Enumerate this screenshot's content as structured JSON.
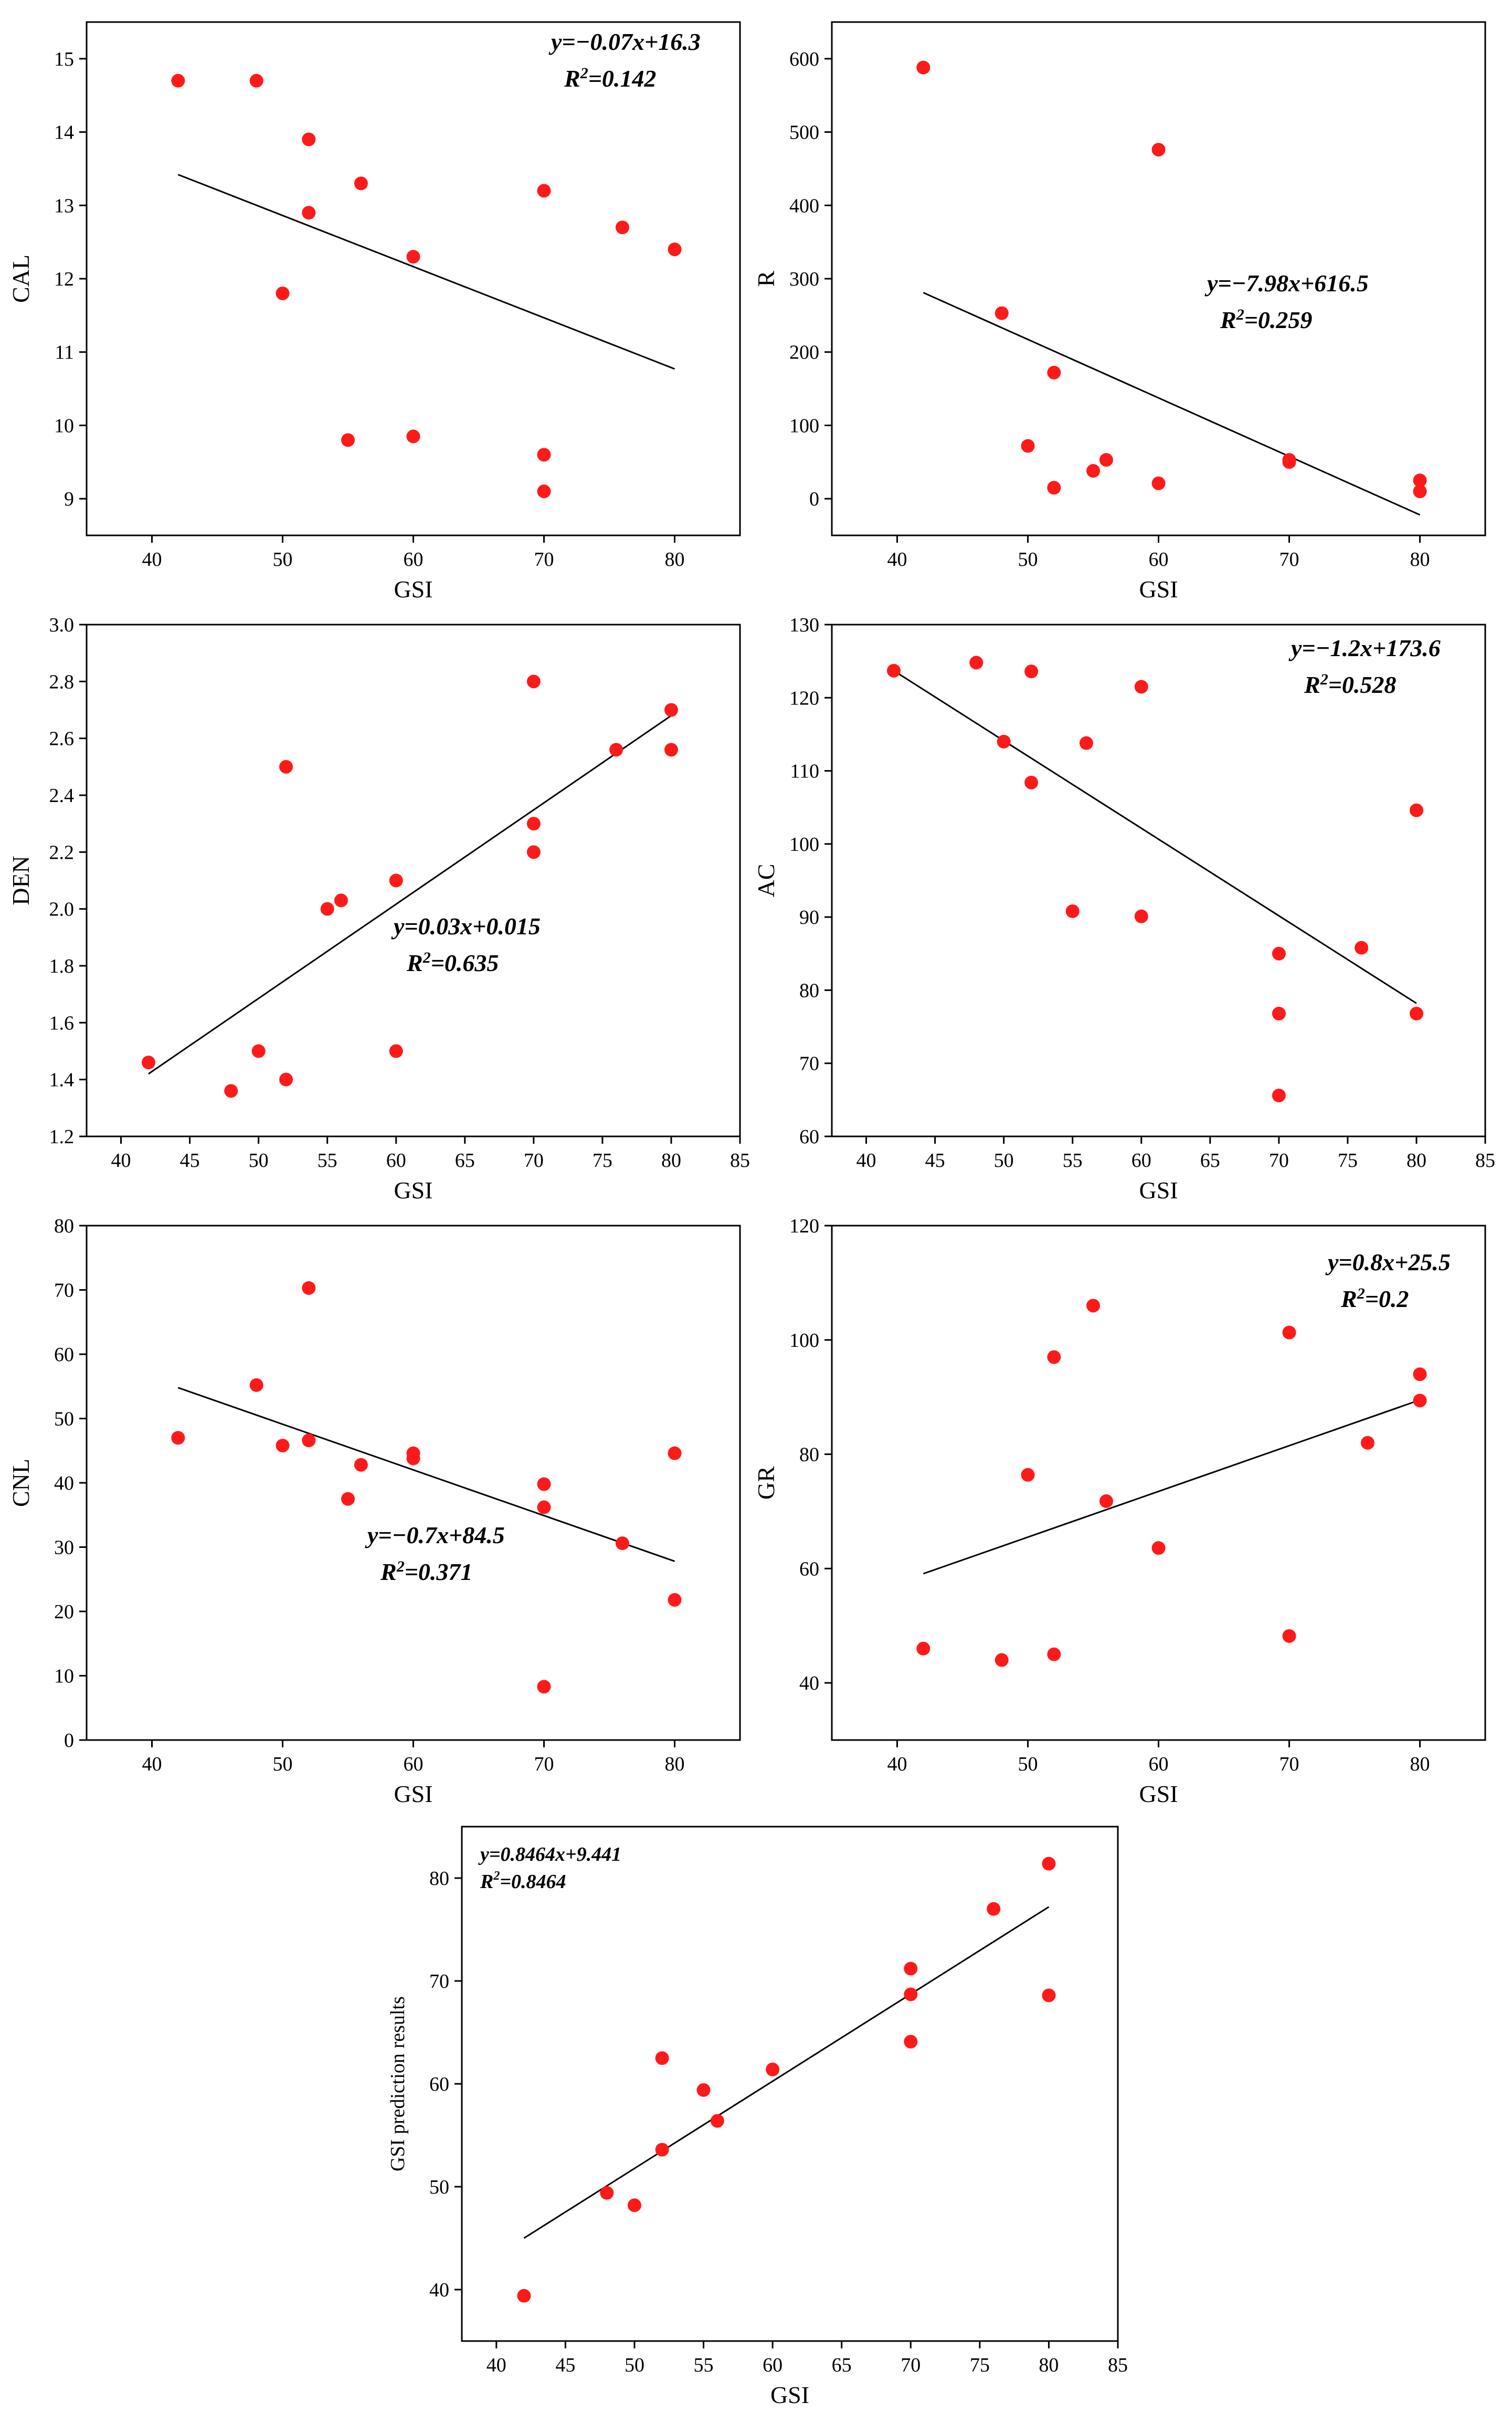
{
  "chart_data": [
    {
      "type": "scatter",
      "id": "cal",
      "xlabel": "GSI",
      "ylabel": "CAL",
      "xlim": [
        35,
        85
      ],
      "ylim": [
        8.5,
        15.5
      ],
      "xticks": [
        40,
        50,
        60,
        70,
        80
      ],
      "yticks": [
        9,
        10,
        11,
        12,
        13,
        14,
        15
      ],
      "points": [
        [
          42,
          14.7
        ],
        [
          48,
          14.7
        ],
        [
          50,
          11.8
        ],
        [
          52,
          13.9
        ],
        [
          52,
          12.9
        ],
        [
          55,
          9.8
        ],
        [
          56,
          13.3
        ],
        [
          60,
          12.3
        ],
        [
          60,
          9.85
        ],
        [
          70,
          13.2
        ],
        [
          70,
          9.6
        ],
        [
          70,
          9.1
        ],
        [
          76,
          12.7
        ],
        [
          80,
          12.4
        ]
      ],
      "fit": {
        "x": [
          42,
          80
        ],
        "y": [
          13.42,
          10.77
        ]
      },
      "equation": "y=−0.07x+16.3",
      "r2_label": "R",
      "r2_value": "=0.142",
      "eq_position": "top-right"
    },
    {
      "type": "scatter",
      "id": "r",
      "xlabel": "GSI",
      "ylabel": "R",
      "xlim": [
        35,
        85
      ],
      "ylim": [
        -50,
        650
      ],
      "xticks": [
        40,
        50,
        60,
        70,
        80
      ],
      "yticks": [
        0,
        100,
        200,
        300,
        400,
        500,
        600
      ],
      "points": [
        [
          42,
          588
        ],
        [
          48,
          253
        ],
        [
          50,
          72
        ],
        [
          52,
          172
        ],
        [
          52,
          15
        ],
        [
          55,
          38
        ],
        [
          56,
          53
        ],
        [
          60,
          476
        ],
        [
          60,
          21
        ],
        [
          70,
          53
        ],
        [
          70,
          50
        ],
        [
          80,
          25
        ],
        [
          80,
          10
        ]
      ],
      "fit": {
        "x": [
          42,
          80
        ],
        "y": [
          281,
          -22
        ]
      },
      "equation": "y=−7.98x+616.5",
      "r2_label": "R",
      "r2_value": "=0.259",
      "eq_position": "middle-right"
    },
    {
      "type": "scatter",
      "id": "den",
      "xlabel": "GSI",
      "ylabel": "DEN",
      "xlim": [
        37.5,
        85
      ],
      "ylim": [
        1.2,
        3.0
      ],
      "xticks": [
        40,
        45,
        50,
        55,
        60,
        65,
        70,
        75,
        80,
        85
      ],
      "yticks": [
        1.2,
        1.4,
        1.6,
        1.8,
        2.0,
        2.2,
        2.4,
        2.6,
        2.8,
        3.0
      ],
      "points": [
        [
          42,
          1.46
        ],
        [
          48,
          1.36
        ],
        [
          50,
          1.5
        ],
        [
          52,
          1.4
        ],
        [
          52,
          2.5
        ],
        [
          55,
          2.0
        ],
        [
          56,
          2.03
        ],
        [
          60,
          2.1
        ],
        [
          60,
          1.5
        ],
        [
          70,
          2.8
        ],
        [
          70,
          2.3
        ],
        [
          70,
          2.2
        ],
        [
          76,
          2.56
        ],
        [
          80,
          2.7
        ],
        [
          80,
          2.56
        ]
      ],
      "fit": {
        "x": [
          42,
          80
        ],
        "y": [
          1.42,
          2.68
        ]
      },
      "equation": "y=0.03x+0.015",
      "r2_label": "R",
      "r2_value": "=0.635",
      "eq_position": "center"
    },
    {
      "type": "scatter",
      "id": "ac",
      "xlabel": "GSI",
      "ylabel": "AC",
      "xlim": [
        37.5,
        85
      ],
      "ylim": [
        60,
        130
      ],
      "xticks": [
        40,
        45,
        50,
        55,
        60,
        65,
        70,
        75,
        80,
        85
      ],
      "yticks": [
        60,
        70,
        80,
        90,
        100,
        110,
        120,
        130
      ],
      "points": [
        [
          42,
          123.7
        ],
        [
          48,
          124.8
        ],
        [
          50,
          114
        ],
        [
          52,
          123.6
        ],
        [
          52,
          108.4
        ],
        [
          55,
          90.8
        ],
        [
          56,
          113.8
        ],
        [
          60,
          121.5
        ],
        [
          60,
          90.1
        ],
        [
          70,
          85
        ],
        [
          70,
          76.8
        ],
        [
          70,
          65.6
        ],
        [
          76,
          85.8
        ],
        [
          80,
          104.6
        ],
        [
          80,
          76.8
        ]
      ],
      "fit": {
        "x": [
          42,
          80
        ],
        "y": [
          123.7,
          78.2
        ]
      },
      "equation": "y=−1.2x+173.6",
      "r2_label": "R",
      "r2_value": "=0.528",
      "eq_position": "top-right"
    },
    {
      "type": "scatter",
      "id": "cnl",
      "xlabel": "GSI",
      "ylabel": "CNL",
      "xlim": [
        35,
        85
      ],
      "ylim": [
        0,
        80
      ],
      "xticks": [
        40,
        50,
        60,
        70,
        80
      ],
      "yticks": [
        0,
        10,
        20,
        30,
        40,
        50,
        60,
        70,
        80
      ],
      "points": [
        [
          42,
          47
        ],
        [
          48,
          55.2
        ],
        [
          50,
          45.8
        ],
        [
          52,
          70.3
        ],
        [
          52,
          46.6
        ],
        [
          55,
          37.5
        ],
        [
          56,
          42.8
        ],
        [
          60,
          44.6
        ],
        [
          60,
          43.8
        ],
        [
          70,
          39.8
        ],
        [
          70,
          36.2
        ],
        [
          70,
          8.3
        ],
        [
          76,
          30.6
        ],
        [
          80,
          44.6
        ],
        [
          80,
          21.8
        ]
      ],
      "fit": {
        "x": [
          42,
          80
        ],
        "y": [
          54.8,
          27.8
        ]
      },
      "equation": "y=−0.7x+84.5",
      "r2_label": "R",
      "r2_value": "=0.371",
      "eq_position": "center-right"
    },
    {
      "type": "scatter",
      "id": "gr",
      "xlabel": "GSI",
      "ylabel": "GR",
      "xlim": [
        35,
        85
      ],
      "ylim": [
        30,
        120
      ],
      "xticks": [
        40,
        50,
        60,
        70,
        80
      ],
      "yticks": [
        40,
        60,
        80,
        100,
        120
      ],
      "points": [
        [
          42,
          46
        ],
        [
          48,
          44
        ],
        [
          50,
          76.4
        ],
        [
          52,
          97
        ],
        [
          52,
          45
        ],
        [
          55,
          106
        ],
        [
          56,
          71.8
        ],
        [
          60,
          63.6
        ],
        [
          70,
          101.3
        ],
        [
          70,
          48.2
        ],
        [
          76,
          82
        ],
        [
          80,
          94
        ],
        [
          80,
          89.4
        ]
      ],
      "fit": {
        "x": [
          42,
          80
        ],
        "y": [
          59.1,
          89.5
        ]
      },
      "equation": "y=0.8x+25.5",
      "r2_label": "R",
      "r2_value": "=0.2",
      "eq_position": "top-right"
    },
    {
      "type": "scatter",
      "id": "pred",
      "xlabel": "GSI",
      "ylabel": "GSI prediction results",
      "xlim": [
        37.5,
        85
      ],
      "ylim": [
        35,
        85
      ],
      "xticks": [
        40,
        45,
        50,
        55,
        60,
        65,
        70,
        75,
        80,
        85
      ],
      "yticks": [
        40,
        50,
        60,
        70,
        80
      ],
      "points": [
        [
          42,
          39.4
        ],
        [
          48,
          49.4
        ],
        [
          50,
          48.2
        ],
        [
          52,
          62.5
        ],
        [
          52,
          53.6
        ],
        [
          55,
          59.4
        ],
        [
          56,
          56.4
        ],
        [
          60,
          61.4
        ],
        [
          70,
          71.2
        ],
        [
          70,
          68.7
        ],
        [
          70,
          64.1
        ],
        [
          76,
          77
        ],
        [
          80,
          81.4
        ],
        [
          80,
          68.6
        ]
      ],
      "fit": {
        "x": [
          42,
          80
        ],
        "y": [
          45,
          77.2
        ]
      },
      "equation": "y=0.8464x+9.441",
      "r2_label": "R",
      "r2_value": "=0.8464",
      "eq_position": "top-left"
    }
  ]
}
